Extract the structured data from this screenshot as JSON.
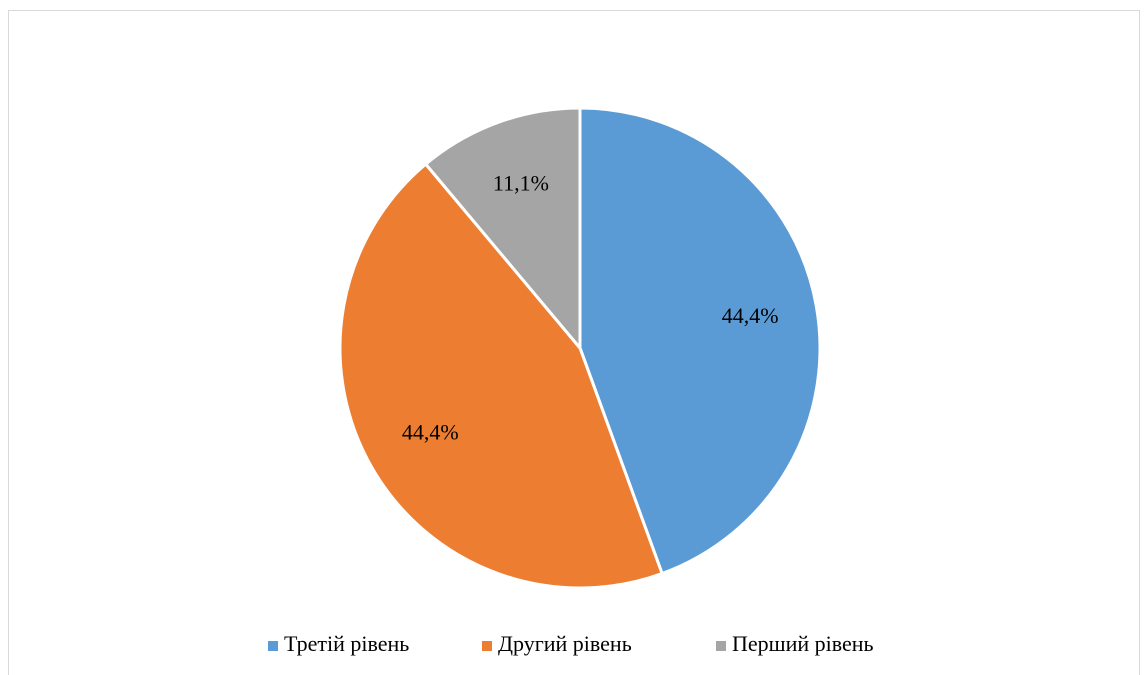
{
  "chart_data": {
    "type": "pie",
    "categories": [
      "Третій рівень",
      "Другий рівень",
      "Перший рівень"
    ],
    "values": [
      44.4,
      44.4,
      11.1
    ],
    "value_labels": [
      "44,4%",
      "44,4%",
      "11,1%"
    ],
    "colors": [
      "#5b9bd5",
      "#ed7d31",
      "#a5a5a5"
    ],
    "legend": "bottom"
  }
}
